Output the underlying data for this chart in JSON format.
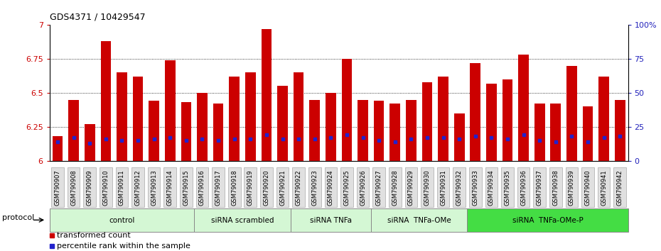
{
  "title": "GDS4371 / 10429547",
  "samples": [
    "GSM790907",
    "GSM790908",
    "GSM790909",
    "GSM790910",
    "GSM790911",
    "GSM790912",
    "GSM790913",
    "GSM790914",
    "GSM790915",
    "GSM790916",
    "GSM790917",
    "GSM790918",
    "GSM790919",
    "GSM790920",
    "GSM790921",
    "GSM790922",
    "GSM790923",
    "GSM790924",
    "GSM790925",
    "GSM790926",
    "GSM790927",
    "GSM790928",
    "GSM790929",
    "GSM790930",
    "GSM790931",
    "GSM790932",
    "GSM790933",
    "GSM790934",
    "GSM790935",
    "GSM790936",
    "GSM790937",
    "GSM790938",
    "GSM790939",
    "GSM790940",
    "GSM790941",
    "GSM790942"
  ],
  "transformed_counts": [
    6.18,
    6.45,
    6.27,
    6.88,
    6.65,
    6.62,
    6.44,
    6.74,
    6.43,
    6.5,
    6.42,
    6.62,
    6.65,
    6.97,
    6.55,
    6.65,
    6.45,
    6.5,
    6.75,
    6.45,
    6.44,
    6.42,
    6.45,
    6.58,
    6.62,
    6.35,
    6.72,
    6.57,
    6.6,
    6.78,
    6.42,
    6.42,
    6.7,
    6.4,
    6.62,
    6.45
  ],
  "percentile_ranks": [
    14,
    17,
    13,
    16,
    15,
    15,
    16,
    17,
    15,
    16,
    15,
    16,
    16,
    19,
    16,
    16,
    16,
    17,
    19,
    17,
    15,
    14,
    16,
    17,
    17,
    16,
    18,
    17,
    16,
    19,
    15,
    14,
    18,
    14,
    17,
    18
  ],
  "ylim_left": [
    6.0,
    7.0
  ],
  "ylim_right": [
    0,
    100
  ],
  "yticks_left": [
    6.0,
    6.25,
    6.5,
    6.75,
    7.0
  ],
  "ytick_labels_left": [
    "6",
    "6.25",
    "6.5",
    "6.75",
    "7"
  ],
  "yticks_right": [
    0,
    25,
    50,
    75,
    100
  ],
  "ytick_labels_right": [
    "0",
    "25",
    "50",
    "75",
    "100%"
  ],
  "bar_color": "#cc0000",
  "dot_color": "#2222cc",
  "protocol_groups": [
    {
      "label": "control",
      "start": 0,
      "end": 9,
      "color": "#d4f7d4"
    },
    {
      "label": "siRNA scrambled",
      "start": 9,
      "end": 15,
      "color": "#d4f7d4"
    },
    {
      "label": "siRNA TNFa",
      "start": 15,
      "end": 20,
      "color": "#d4f7d4"
    },
    {
      "label": "siRNA  TNFa-OMe",
      "start": 20,
      "end": 26,
      "color": "#d4f7d4"
    },
    {
      "label": "siRNA  TNFa-OMe-P",
      "start": 26,
      "end": 36,
      "color": "#44dd44"
    }
  ],
  "protocol_label": "protocol",
  "legend_items": [
    {
      "label": "transformed count",
      "color": "#cc0000"
    },
    {
      "label": "percentile rank within the sample",
      "color": "#2222cc"
    }
  ],
  "grid_color": "black",
  "grid_linestyle": "dotted",
  "grid_linewidth": 0.6,
  "title_fontsize": 9,
  "bar_width": 0.65,
  "xlabel_color": "#cc0000",
  "ylabel_right_color": "#2222bb",
  "ticklabel_bg": "#e0e0e0",
  "ticklabel_edge": "#aaaaaa"
}
